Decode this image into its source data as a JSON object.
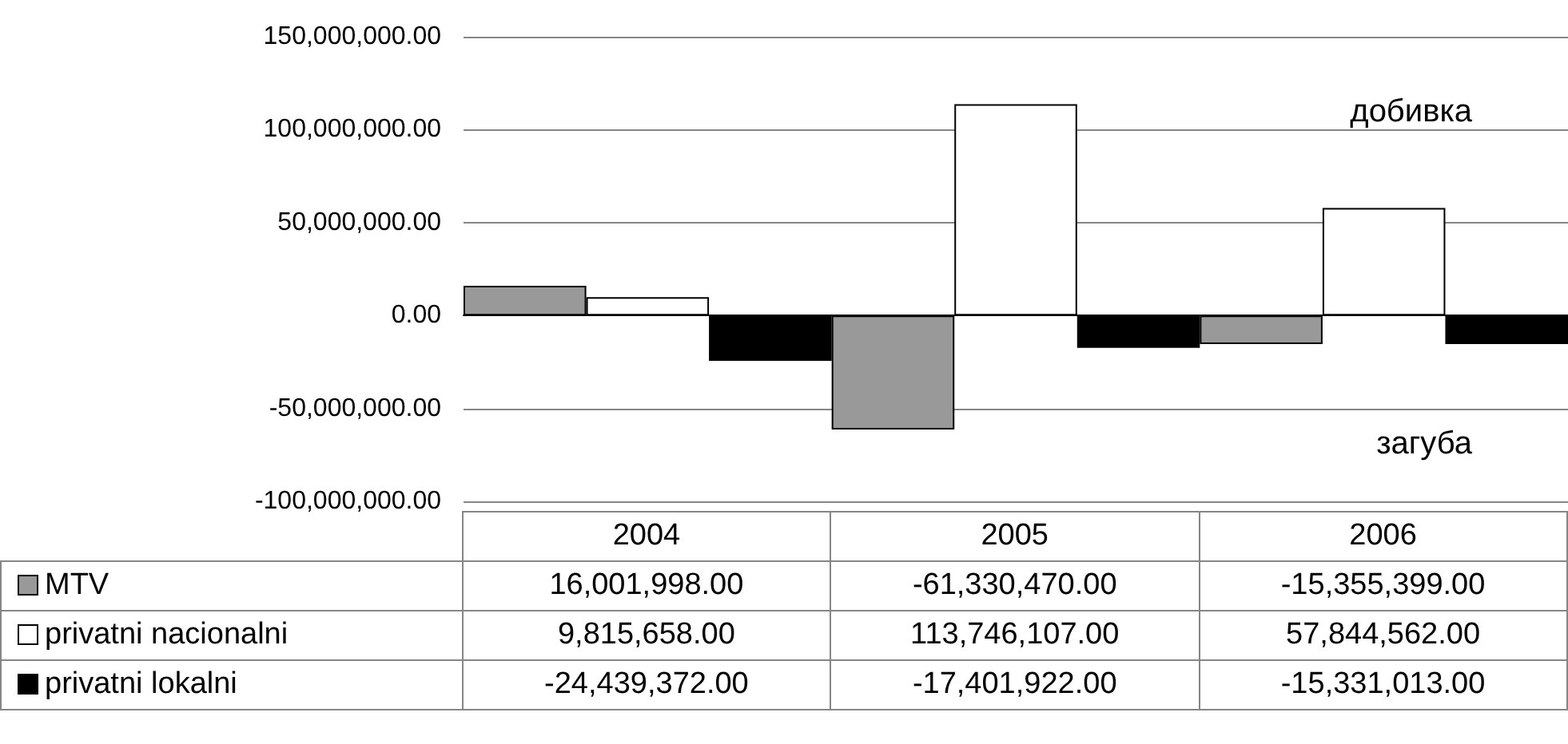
{
  "chart_data": {
    "type": "bar",
    "categories": [
      "2004",
      "2005",
      "2006"
    ],
    "series": [
      {
        "name": "MTV",
        "color": "#999999",
        "values": [
          16001998,
          -61330470,
          -15355399
        ],
        "value_labels": [
          "16,001,998.00",
          "-61,330,470.00",
          "-15,355,399.00"
        ]
      },
      {
        "name": "privatni nacionalni",
        "color": "#ffffff",
        "values": [
          9815658,
          113746107,
          57844562
        ],
        "value_labels": [
          "9,815,658.00",
          "113,746,107.00",
          "57,844,562.00"
        ]
      },
      {
        "name": "privatni lokalni",
        "color": "#000000",
        "values": [
          -24439372,
          -17401922,
          -15331013
        ],
        "value_labels": [
          "-24,439,372.00",
          "-17,401,922.00",
          "-15,331,013.00"
        ]
      }
    ],
    "ylim": [
      -100000000,
      150000000
    ],
    "yticks": [
      {
        "value": -100000000,
        "label": "-100,000,000.00"
      },
      {
        "value": -50000000,
        "label": "-50,000,000.00"
      },
      {
        "value": 0,
        "label": "0.00"
      },
      {
        "value": 50000000,
        "label": "50,000,000.00"
      },
      {
        "value": 100000000,
        "label": "100,000,000.00"
      },
      {
        "value": 150000000,
        "label": "150,000,000.00"
      }
    ],
    "grid": "y",
    "legend": "bottom left",
    "annotations": [
      "добивка",
      "загуба"
    ]
  }
}
